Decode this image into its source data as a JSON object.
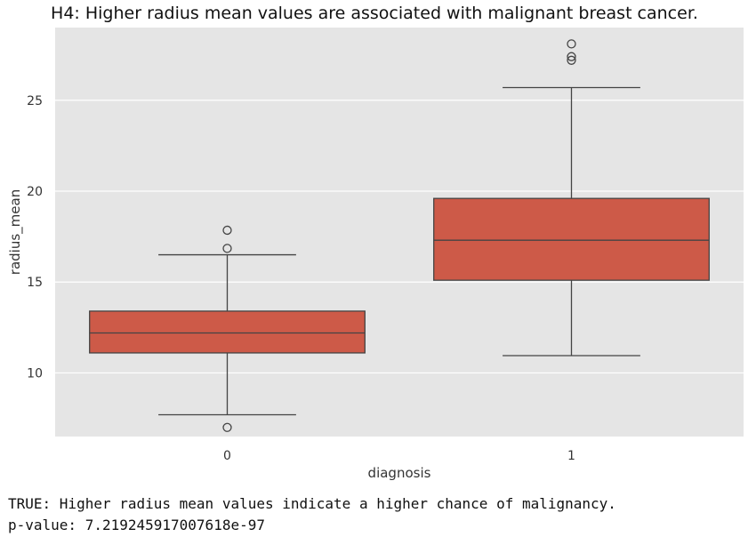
{
  "chart_data": {
    "type": "box",
    "title": "H4: Higher radius mean values are associated with malignant breast cancer.",
    "xlabel": "diagnosis",
    "ylabel": "radius_mean",
    "categories": [
      "0",
      "1"
    ],
    "ylim": [
      6.5,
      29.0
    ],
    "yticks": [
      10,
      15,
      20,
      25
    ],
    "grid": true,
    "colors": {
      "box": "#cd5a48",
      "background": "#e5e5e5",
      "grid": "#ffffff",
      "line": "#444444"
    },
    "boxes": [
      {
        "category": "0",
        "whisker_low": 7.7,
        "q1": 11.1,
        "median": 12.2,
        "q3": 13.4,
        "whisker_high": 16.5,
        "outliers": [
          17.85,
          16.85,
          7.0
        ]
      },
      {
        "category": "1",
        "whisker_low": 10.95,
        "q1": 15.1,
        "median": 17.3,
        "q3": 19.6,
        "whisker_high": 25.7,
        "outliers": [
          28.1,
          27.4,
          27.2
        ]
      }
    ]
  },
  "output_lines": [
    "TRUE: Higher radius mean values indicate a higher chance of malignancy.",
    "p-value: 7.219245917007618e-97"
  ]
}
